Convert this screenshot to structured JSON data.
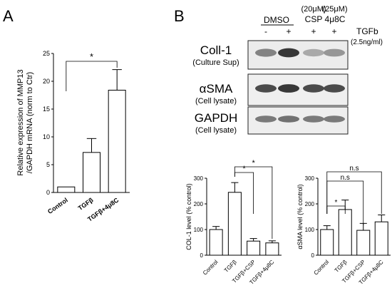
{
  "panels": {
    "a_label": "A",
    "b_label": "B"
  },
  "blot": {
    "group_dmso": "DMSO",
    "group_csp_conc": "(20μM)",
    "group_csp": "CSP",
    "group_4u8c_conc": "(25μM)",
    "group_4u8c": "4μ8C",
    "treatment_label": "TGFb",
    "treatment_conc": "(2.5ng/ml)",
    "lane_signs": [
      "-",
      "+",
      "+",
      "+"
    ],
    "rows": [
      {
        "name": "Coll-1",
        "sub": "(Culture Sup)"
      },
      {
        "name": "αSMA",
        "sub": "(Cell lysate)"
      },
      {
        "name": "GAPDH",
        "sub": "(Cell lysate)"
      }
    ],
    "band_intensity": [
      [
        0.55,
        0.95,
        0.35,
        0.45
      ],
      [
        0.85,
        0.95,
        0.85,
        0.85
      ],
      [
        0.6,
        0.65,
        0.6,
        0.6
      ]
    ]
  },
  "chart_data": [
    {
      "type": "bar",
      "categories": [
        "Control",
        "TGFβ",
        "TGFβ+4μ8C"
      ],
      "values": [
        1.0,
        7.2,
        18.4
      ],
      "errors": [
        0,
        2.5,
        3.7
      ],
      "title": "",
      "xlabel": "",
      "ylabel": "Relative expression of MMP13 /GAPDH mRNA (norm to Ctr)",
      "ylabel_lines": [
        "Relative expression of MMP13",
        "/GAPDH mRNA (norm to Ctr)"
      ],
      "ylim": [
        0,
        25
      ],
      "yticks": [
        "0",
        "5",
        "10",
        "15",
        "20",
        "25"
      ],
      "grid": false,
      "significance": [
        {
          "from": 0,
          "to": 2,
          "label": "*"
        }
      ]
    },
    {
      "type": "bar",
      "categories": [
        "Control",
        "TGFβ",
        "TGFβ+CSP",
        "TGFβ+4μ8C"
      ],
      "values": [
        100,
        245,
        55,
        48
      ],
      "errors": [
        12,
        38,
        10,
        8
      ],
      "title": "",
      "xlabel": "",
      "ylabel": "COL-1 level (% control)",
      "ylim": [
        0,
        300
      ],
      "yticks": [
        "0",
        "100",
        "200",
        "300"
      ],
      "grid": false,
      "significance": [
        {
          "from": 1,
          "to": 2,
          "label": "*"
        },
        {
          "from": 1,
          "to": 3,
          "label": "*"
        }
      ]
    },
    {
      "type": "bar",
      "categories": [
        "Control",
        "TGFβ",
        "TGFβ+CSP",
        "TGFβ+4μ8C"
      ],
      "values": [
        100,
        178,
        97,
        130
      ],
      "errors": [
        15,
        37,
        27,
        27
      ],
      "title": "",
      "xlabel": "",
      "ylabel": "αSMA level (% control)",
      "ylim": [
        0,
        300
      ],
      "yticks": [
        "0",
        "100",
        "200",
        "300"
      ],
      "grid": false,
      "significance": [
        {
          "from": 0,
          "to": 1,
          "label": "*"
        },
        {
          "from": 0,
          "to": 2,
          "label": "n.s"
        },
        {
          "from": 0,
          "to": 3,
          "label": "n.s"
        }
      ]
    }
  ]
}
